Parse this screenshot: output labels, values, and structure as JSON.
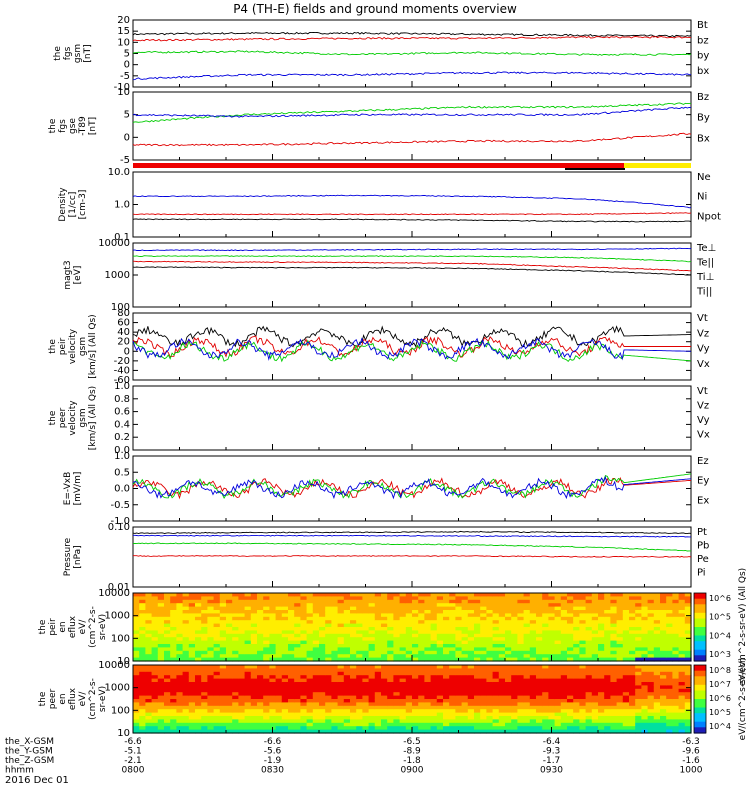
{
  "title": "P4 (TH-E) fields and ground moments overview",
  "date": "2016 Dec 01",
  "colors": {
    "black": "#000000",
    "red": "#e00000",
    "green": "#00cc00",
    "blue": "#0000dd"
  },
  "orbit": {
    "labels": [
      "the_X-GSM",
      "the_Y-GSM",
      "the_Z-GSM",
      "hhmm"
    ],
    "columns": [
      {
        "t": 0,
        "X": "-6.6",
        "Y": "-5.1",
        "Z": "-2.1",
        "hhmm": "0800"
      },
      {
        "t": 30,
        "X": "-6.6",
        "Y": "-5.6",
        "Z": "-1.9",
        "hhmm": "0830"
      },
      {
        "t": 60,
        "X": "-6.5",
        "Y": "-8.9",
        "Z": "-1.8",
        "hhmm": "0900"
      },
      {
        "t": 90,
        "X": "-6.4",
        "Y": "-9.3",
        "Z": "-1.7",
        "hhmm": "0930"
      },
      {
        "t": 120,
        "X": "-6.3",
        "Y": "-9.6",
        "Z": "-1.6",
        "hhmm": "1000"
      }
    ]
  },
  "chart_data": [
    {
      "id": "fgs_gsm",
      "type": "line",
      "ylabel": [
        "the",
        "fgs",
        "gsm",
        "[nT]"
      ],
      "yticks": [
        "20",
        "15",
        "10",
        "5",
        "0",
        "-5",
        "-10"
      ],
      "ylim": [
        -12,
        21
      ],
      "series": [
        {
          "name": "Bt",
          "color": "black",
          "values": [
            14,
            14.5,
            14.5,
            14,
            13.5,
            13
          ]
        },
        {
          "name": "bz",
          "color": "red",
          "values": [
            11,
            11.5,
            12,
            12,
            12.5,
            12.5
          ]
        },
        {
          "name": "by",
          "color": "green",
          "values": [
            5,
            5.5,
            4,
            5,
            4,
            4
          ]
        },
        {
          "name": "bx",
          "color": "blue",
          "values": [
            -8,
            -6,
            -6,
            -5,
            -5,
            -6
          ]
        }
      ]
    },
    {
      "id": "fgs_gse",
      "type": "line",
      "ylabel": [
        "the",
        "fgs",
        "gse",
        "-T89",
        "[nT]"
      ],
      "yticks": [
        "10",
        "5",
        "0",
        "-5"
      ],
      "ylim": [
        -7,
        11
      ],
      "series": [
        {
          "name": "Bz",
          "color": "red",
          "values": [
            -3,
            -3,
            -2.5,
            -2,
            -2,
            0
          ]
        },
        {
          "name": "By",
          "color": "green",
          "values": [
            3,
            5,
            6,
            7,
            7,
            8
          ]
        },
        {
          "name": "Bx",
          "color": "blue",
          "values": [
            5,
            4.5,
            5,
            5,
            5,
            7
          ]
        }
      ]
    },
    {
      "id": "density",
      "type": "line",
      "ylabel": [
        "Density",
        "[1/cc]",
        "[cm-3]"
      ],
      "yticks": [
        "10.0",
        "1.0",
        "0.1"
      ],
      "ylim": [
        0.1,
        10
      ],
      "log": true,
      "series": [
        {
          "name": "Ne",
          "color": "red",
          "values": [
            0.5,
            0.5,
            0.5,
            0.5,
            0.5,
            0.55
          ]
        },
        {
          "name": "Ni",
          "color": "black",
          "values": [
            0.35,
            0.35,
            0.35,
            0.33,
            0.3,
            0.3
          ]
        },
        {
          "name": "Npot",
          "color": "blue",
          "values": [
            1.8,
            1.8,
            1.9,
            1.8,
            1.5,
            0.8
          ]
        }
      ]
    },
    {
      "id": "temperature",
      "type": "line",
      "ylabel": [
        "magt3",
        "[eV]"
      ],
      "yticks": [
        "10000",
        "1000",
        "100"
      ],
      "ylim": [
        100,
        12000
      ],
      "log": true,
      "series": [
        {
          "name": "Te⊥",
          "color": "red",
          "values": [
            3000,
            2900,
            2800,
            2600,
            2000,
            1500
          ]
        },
        {
          "name": "Te||",
          "color": "black",
          "values": [
            2000,
            1900,
            1900,
            1800,
            1500,
            1100
          ]
        },
        {
          "name": "Ti⊥",
          "color": "blue",
          "values": [
            7000,
            7000,
            7200,
            7500,
            7500,
            8000
          ]
        },
        {
          "name": "Ti||",
          "color": "green",
          "values": [
            4500,
            4500,
            4500,
            4500,
            4000,
            3000
          ]
        }
      ]
    },
    {
      "id": "peir_velocity",
      "type": "line",
      "ylabel": [
        "the",
        "peir",
        "velocity",
        "gsm",
        "[km/s] (All Qs)"
      ],
      "yticks": [
        "80",
        "60",
        "40",
        "20",
        "0",
        "-20",
        "-40",
        "-60"
      ],
      "ylim": [
        -60,
        80
      ],
      "series": [
        {
          "name": "Vt",
          "color": "black",
          "values": [
            30,
            30,
            30,
            30,
            30,
            35
          ]
        },
        {
          "name": "Vz",
          "color": "red",
          "values": [
            10,
            10,
            10,
            10,
            10,
            10
          ]
        },
        {
          "name": "Vy",
          "color": "green",
          "values": [
            0,
            0,
            0,
            0,
            0,
            -20
          ]
        },
        {
          "name": "Vx",
          "color": "blue",
          "values": [
            5,
            5,
            5,
            5,
            5,
            0
          ]
        }
      ]
    },
    {
      "id": "peer_velocity",
      "type": "line",
      "ylabel": [
        "the",
        "peer",
        "velocity",
        "gsm",
        "[km/s] (All Qs)"
      ],
      "yticks": [
        "1.0",
        "0.8",
        "0.6",
        "0.4",
        "0.2",
        "0.0"
      ],
      "ylim": [
        0,
        1
      ],
      "series": [
        {
          "name": "Vt",
          "color": "black",
          "values": []
        },
        {
          "name": "Vz",
          "color": "red",
          "values": []
        },
        {
          "name": "Vy",
          "color": "green",
          "values": []
        },
        {
          "name": "Vx",
          "color": "blue",
          "values": []
        }
      ]
    },
    {
      "id": "e_vxb",
      "type": "line",
      "ylabel": [
        "E=-VxB",
        "[mV/m]"
      ],
      "yticks": [
        "1.0",
        "0.5",
        "0.0",
        "-0.5",
        "-1.0"
      ],
      "ylim": [
        -1,
        1
      ],
      "series": [
        {
          "name": "Ez",
          "color": "red",
          "values": [
            0,
            0,
            0,
            0,
            0,
            0.25
          ]
        },
        {
          "name": "Ey",
          "color": "green",
          "values": [
            0,
            0,
            0,
            0,
            0,
            0.45
          ]
        },
        {
          "name": "Ex",
          "color": "blue",
          "values": [
            0,
            0,
            0,
            0,
            0,
            0.3
          ]
        }
      ]
    },
    {
      "id": "pressure",
      "type": "line",
      "ylabel": [
        "Pressure",
        "[nPa]"
      ],
      "yticks": [
        "0.10",
        "0.01"
      ],
      "ylim": [
        0.01,
        0.7
      ],
      "log": true,
      "series": [
        {
          "name": "Pt",
          "color": "black",
          "values": [
            0.45,
            0.47,
            0.48,
            0.5,
            0.48,
            0.45
          ]
        },
        {
          "name": "Pb",
          "color": "red",
          "values": [
            0.09,
            0.09,
            0.09,
            0.09,
            0.085,
            0.085
          ]
        },
        {
          "name": "Pe",
          "color": "green",
          "values": [
            0.22,
            0.22,
            0.21,
            0.2,
            0.17,
            0.13
          ]
        },
        {
          "name": "Pi",
          "color": "blue",
          "values": [
            0.38,
            0.38,
            0.38,
            0.37,
            0.36,
            0.35
          ]
        }
      ]
    },
    {
      "id": "peir_eflux",
      "type": "heatmap",
      "ylabel": [
        "the",
        "peir",
        "en",
        "eflux",
        "eV/",
        "(cm^2-s-",
        "sr-eV)"
      ],
      "yticks": [
        "10000",
        "1000",
        "100",
        "10"
      ],
      "ylim": [
        5,
        30000
      ],
      "log": true,
      "colorbar": {
        "label": "eV/(cm^2-s-sr-eV) (All Qs)",
        "ticks": [
          "10^6",
          "10^5",
          "10^4",
          "10^3"
        ]
      }
    },
    {
      "id": "peer_eflux",
      "type": "heatmap",
      "ylabel": [
        "the",
        "peer",
        "en",
        "eflux",
        "eV/",
        "(cm^2-s-",
        "sr-eV)"
      ],
      "yticks": [
        "10000",
        "1000",
        "100",
        "10"
      ],
      "ylim": [
        5,
        30000
      ],
      "log": true,
      "colorbar": {
        "label": "eV/(cm^2-s-sr-eV)",
        "ticks": [
          "10^8",
          "10^7",
          "10^6",
          "10^5",
          "10^4"
        ]
      }
    }
  ]
}
